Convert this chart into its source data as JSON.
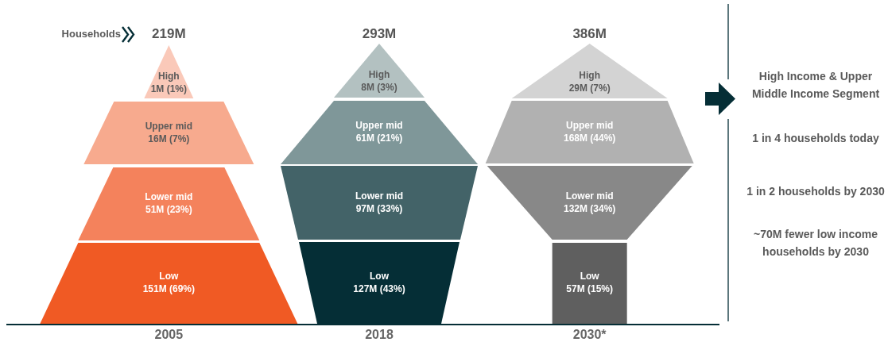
{
  "chart_data": {
    "type": "other",
    "categories": [
      "2005",
      "2018",
      "2030*"
    ],
    "totals": [
      "219M",
      "293M",
      "386M"
    ],
    "series": [
      {
        "name": "Low",
        "values": [
          151000000,
          127000000,
          57000000
        ],
        "value_labels": [
          "151M (69%)",
          "127M (43%)",
          "57M (15%)"
        ],
        "colors": [
          "#f05a24",
          "#052e36",
          "#5f5f5f"
        ]
      },
      {
        "name": "Lower mid",
        "values": [
          51000000,
          97000000,
          132000000
        ],
        "value_labels": [
          "51M (23%)",
          "97M (33%)",
          "132M (34%)"
        ],
        "colors": [
          "#f4825c",
          "#436368",
          "#888888"
        ]
      },
      {
        "name": "Upper mid",
        "values": [
          16000000,
          61000000,
          168000000
        ],
        "value_labels": [
          "16M (7%)",
          "61M (21%)",
          "168M (44%)"
        ],
        "colors": [
          "#f7aa8e",
          "#7f9799",
          "#b1b1b1"
        ]
      },
      {
        "name": "High",
        "values": [
          1000000,
          8000000,
          29000000
        ],
        "value_labels": [
          "1M (1%)",
          "8M (3%)",
          "29M (7%)"
        ],
        "colors": [
          "#fac9b9",
          "#b3c1c1",
          "#d3d3d3"
        ]
      }
    ],
    "annotations": [
      "Households",
      "High Income & Upper Middle Income Segment",
      "1 in 4 households today",
      "1 in 2 households by 2030",
      "~70M fewer low income households by 2030"
    ]
  }
}
